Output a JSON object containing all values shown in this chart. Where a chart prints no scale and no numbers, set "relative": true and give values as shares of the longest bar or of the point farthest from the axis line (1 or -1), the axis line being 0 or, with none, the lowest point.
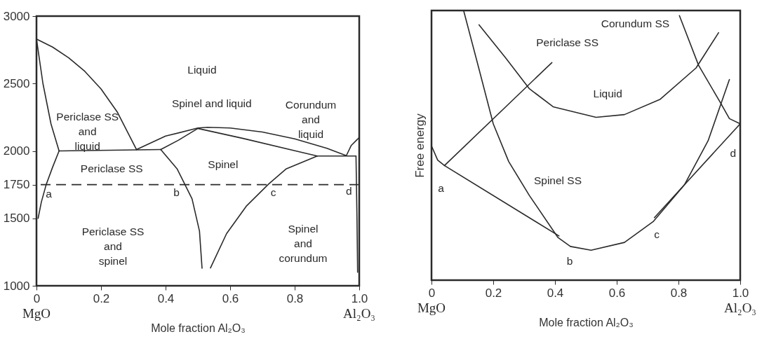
{
  "chart_data": [
    {
      "type": "line",
      "xlabel": "Mole fraction Al₂O₃",
      "xlim": [
        0,
        1
      ],
      "xticks": [
        0,
        0.2,
        0.4,
        0.6,
        0.8,
        {
          "value": 1,
          "label": "1.0"
        }
      ],
      "ylim": [
        1000,
        3000
      ],
      "yticks": [
        1000,
        1500,
        1750,
        2000,
        2500,
        3000
      ],
      "series": [
        {
          "color": "#2a2a2a",
          "x": [
            0,
            0.05,
            0.1,
            0.15,
            0.2,
            0.25,
            0.31
          ],
          "values": [
            2830,
            2770,
            2690,
            2590,
            2460,
            2290,
            2010
          ]
        },
        {
          "color": "#2a2a2a",
          "x": [
            0,
            0.02,
            0.045,
            0.07
          ],
          "values": [
            2830,
            2500,
            2200,
            2000
          ]
        },
        {
          "color": "#2a2a2a",
          "x": [
            0.005,
            0.015,
            0.03,
            0.05,
            0.07
          ],
          "values": [
            1500,
            1620,
            1750,
            1880,
            2000
          ]
        },
        {
          "color": "#2a2a2a",
          "x": [
            0.07,
            0.385
          ],
          "values": [
            2000,
            2010
          ]
        },
        {
          "color": "#2a2a2a",
          "x": [
            0.31,
            0.4,
            0.5,
            0.53,
            0.6,
            0.7,
            0.8,
            0.9,
            0.96
          ],
          "values": [
            2010,
            2110,
            2170,
            2175,
            2170,
            2140,
            2090,
            2020,
            1965
          ]
        },
        {
          "color": "#2a2a2a",
          "x": [
            0.385,
            0.44,
            0.5,
            0.64,
            0.81,
            0.87,
            0.99
          ],
          "values": [
            2010,
            2080,
            2167,
            2093,
            1996,
            1962,
            1962
          ]
        },
        {
          "color": "#2a2a2a",
          "x": [
            0.385,
            0.436,
            0.482,
            0.505,
            0.513
          ],
          "values": [
            2010,
            1866,
            1645,
            1406,
            1130
          ]
        },
        {
          "color": "#2a2a2a",
          "x": [
            0.539,
            0.589,
            0.65,
            0.719,
            0.773,
            0.87
          ],
          "values": [
            1132,
            1387,
            1590,
            1754,
            1866,
            1962
          ]
        },
        {
          "color": "#2a2a2a",
          "x": [
            0.96,
            0.975,
            1.0
          ],
          "values": [
            1965,
            2040,
            2100
          ]
        },
        {
          "color": "#2a2a2a",
          "x": [
            0.99,
            0.993,
            0.995
          ],
          "values": [
            1962,
            1500,
            1100
          ]
        }
      ],
      "ref_lines": [
        {
          "axis": "y",
          "value": 1750,
          "line_style": "dashed",
          "color": "#2a2a2a"
        }
      ],
      "annotations": [
        "Liquid",
        "Periclase SS\nand\nliquid",
        "Spinel and liquid",
        "Corundum\nand\nliquid",
        "Periclase SS",
        "Spinel",
        "Periclase SS\nand\nspinel",
        "Spinel\nand\ncorundum",
        "a",
        "b",
        "c",
        "d",
        "MgO",
        "Al₂O₃"
      ]
    },
    {
      "type": "line",
      "relative": true,
      "xlabel": "Mole fraction Al₂O₃",
      "ylabel": "Free energy",
      "xlim": [
        0,
        1
      ],
      "xticks": [
        0,
        0.2,
        0.4,
        0.6,
        0.8,
        {
          "value": 1,
          "label": "1.0"
        }
      ],
      "series": [
        {
          "color": "#2a2a2a",
          "x": [
            0.104,
            0.15,
            0.2,
            0.25,
            0.317,
            0.409,
            0.45,
            0.517,
            0.625,
            0.718,
            0.819,
            0.896,
            0.965
          ],
          "values": [
            1.0,
            0.8,
            0.58,
            0.44,
            0.314,
            0.159,
            0.125,
            0.111,
            0.14,
            0.217,
            0.353,
            0.517,
            0.744
          ]
        },
        {
          "color": "#2a2a2a",
          "x": [
            0,
            0.02,
            0.042,
            0.39
          ],
          "values": [
            0.498,
            0.445,
            0.425,
            0.807
          ]
        },
        {
          "color": "#2a2a2a",
          "x": [
            0.042,
            0.413
          ],
          "values": [
            0.425,
            0.164
          ]
        },
        {
          "color": "#2a2a2a",
          "x": [
            0.722,
            1.0
          ],
          "values": [
            0.232,
            0.58
          ]
        },
        {
          "color": "#2a2a2a",
          "x": [
            0.803,
            0.865,
            0.934,
            0.965,
            1.0
          ],
          "values": [
            0.981,
            0.797,
            0.662,
            0.599,
            0.58
          ]
        },
        {
          "color": "#2a2a2a",
          "x": [
            0.154,
            0.239,
            0.317,
            0.394,
            0.533,
            0.625,
            0.741,
            0.857,
            0.93
          ],
          "values": [
            0.947,
            0.826,
            0.71,
            0.643,
            0.604,
            0.614,
            0.671,
            0.787,
            0.918
          ]
        }
      ],
      "annotations": [
        "Periclase SS",
        "Liquid",
        "Corundum SS",
        "Spinel SS",
        "a",
        "b",
        "c",
        "d",
        "MgO",
        "Al₂O₃"
      ]
    }
  ]
}
